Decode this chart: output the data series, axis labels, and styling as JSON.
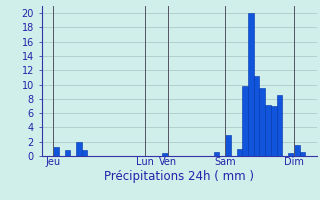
{
  "xlabel": "Précipitations 24h ( mm )",
  "background_color": "#d0eeea",
  "bar_color": "#1155dd",
  "bar_edge_color": "#0033aa",
  "grid_color": "#aaccc8",
  "axis_color": "#3333aa",
  "tick_color": "#2222aa",
  "vline_color": "#555566",
  "ylim": [
    0,
    21
  ],
  "yticks": [
    0,
    2,
    4,
    6,
    8,
    10,
    12,
    14,
    16,
    18,
    20
  ],
  "day_labels": [
    "Jeu",
    "Lun",
    "Ven",
    "Sam",
    "Dim"
  ],
  "day_positions": [
    2,
    18,
    22,
    32,
    44
  ],
  "vline_positions": [
    2,
    18,
    22,
    32,
    44
  ],
  "num_bars": 48,
  "values": [
    0,
    0,
    1.2,
    0,
    0.9,
    0,
    2.0,
    0.8,
    0,
    0,
    0,
    0,
    0,
    0,
    0,
    0,
    0,
    0,
    0,
    0,
    0,
    0.4,
    0,
    0,
    0,
    0,
    0,
    0,
    0,
    0,
    0.5,
    0,
    3.0,
    0,
    1.0,
    9.8,
    20.0,
    11.2,
    9.5,
    7.2,
    7.0,
    8.5,
    0,
    0.4,
    1.5,
    0.6,
    0,
    0
  ],
  "tick_fontsize": 7,
  "label_fontsize": 8.5
}
